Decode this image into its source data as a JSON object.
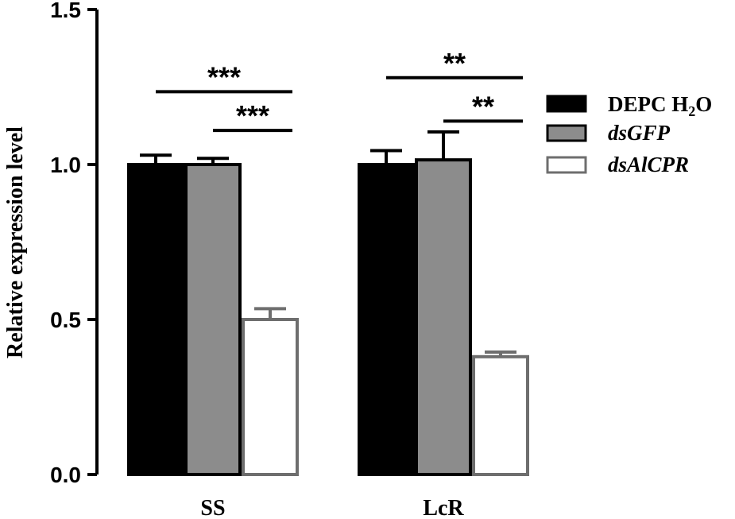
{
  "chart_data": {
    "type": "bar",
    "title": "",
    "xlabel": "",
    "ylabel": "Relative expression level",
    "ylim": [
      0,
      1.5
    ],
    "yticks": [
      "0.0",
      "0.5",
      "1.0",
      "1.5"
    ],
    "ytick_values": [
      0,
      0.5,
      1.0,
      1.5
    ],
    "categories": [
      "SS",
      "LcR"
    ],
    "grid": false,
    "legend_position": "right",
    "series": [
      {
        "name": "DEPC H2O",
        "values": [
          1.0,
          1.0
        ],
        "errors": [
          0.03,
          0.045
        ],
        "color": "#000000",
        "stroke": "#000000"
      },
      {
        "name": "dsGFP",
        "values": [
          1.0,
          1.015
        ],
        "errors": [
          0.02,
          0.09
        ],
        "color": "#8c8c8c",
        "stroke": "#000000"
      },
      {
        "name": "dsAlCPR",
        "values": [
          0.5,
          0.38
        ],
        "errors": [
          0.035,
          0.015
        ],
        "color": "#ffffff",
        "stroke": "#6e6e6e"
      }
    ],
    "legend": {
      "label_main": "DEPC H",
      "label_sub": "2",
      "label_tail": "O",
      "label_2": "dsGFP",
      "label_3": "dsAlCPR"
    },
    "significance": [
      {
        "category": 0,
        "from_series": 0,
        "to_series": 2,
        "label": "***",
        "level": 1.235
      },
      {
        "category": 0,
        "from_series": 1,
        "to_series": 2,
        "label": "***",
        "level": 1.11
      },
      {
        "category": 1,
        "from_series": 0,
        "to_series": 2,
        "label": "**",
        "level": 1.28
      },
      {
        "category": 1,
        "from_series": 1,
        "to_series": 2,
        "label": "**",
        "level": 1.14
      }
    ]
  }
}
